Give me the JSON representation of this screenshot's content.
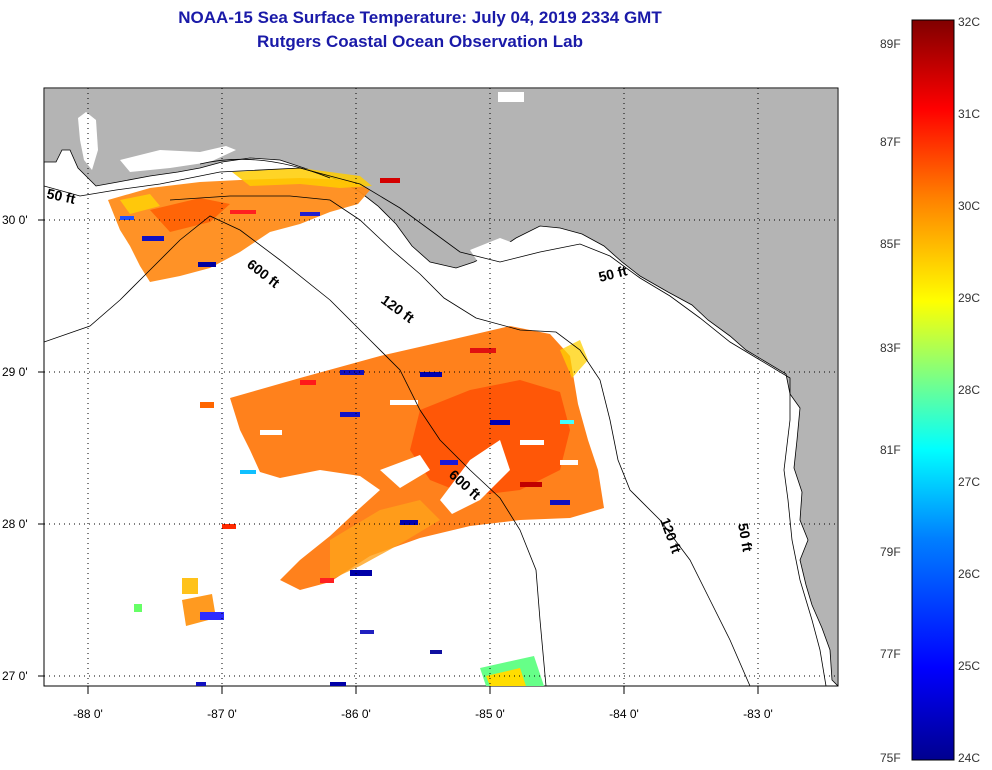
{
  "header": {
    "title": "NOAA-15 Sea Surface Temperature:  July 04, 2019 2334 GMT",
    "subtitle": "Rutgers Coastal Ocean Observation Lab"
  },
  "map": {
    "lon_ticks": [
      "-88 0'",
      "-87 0'",
      "-86 0'",
      "-85 0'",
      "-84 0'",
      "-83 0'"
    ],
    "lat_ticks": [
      "30 0'",
      "29 0'",
      "28 0'",
      "27 0'"
    ],
    "contour_labels": {
      "c50_west": "50 ft",
      "c600_north": "600 ft",
      "c120_north": "120 ft",
      "c50_mid": "50 ft",
      "c600_south": "600 ft",
      "c120_south": "120 ft",
      "c50_south": "50 ft"
    },
    "colors": {
      "land": "#b4b4b4",
      "ocean": "#ffffff"
    }
  },
  "colorbar": {
    "f_labels": [
      "89F",
      "87F",
      "85F",
      "83F",
      "81F",
      "79F",
      "77F",
      "75F"
    ],
    "c_labels": [
      "32C",
      "31C",
      "30C",
      "29C",
      "28C",
      "27C",
      "26C",
      "25C",
      "24C"
    ],
    "colors": [
      "#00008f",
      "#0000ff",
      "#0080ff",
      "#00ffff",
      "#80ff80",
      "#ffff00",
      "#ff8000",
      "#ff0000",
      "#800000"
    ]
  }
}
